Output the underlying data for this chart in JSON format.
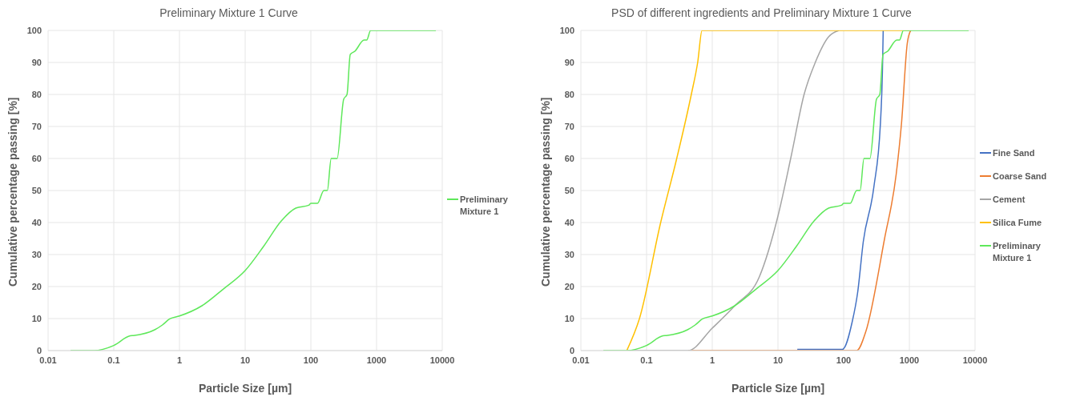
{
  "chart_data": [
    {
      "type": "line",
      "title": "Preliminary Mixture 1 Curve",
      "xlabel": "Particle Size [µm]",
      "ylabel": "Cumulative percentage passing [%]",
      "log": "x",
      "grid": true,
      "legend": "right",
      "marker": "none",
      "line_style": "solid",
      "xlim": [
        0.01,
        10000
      ],
      "xticks": [
        0.01,
        0.1,
        1,
        10,
        100,
        1000,
        10000
      ],
      "ylim": [
        0,
        100
      ],
      "yticks": [
        0,
        10,
        20,
        30,
        40,
        50,
        60,
        70,
        80,
        90,
        100
      ],
      "series": [
        {
          "name": "Preliminary Mixture 1",
          "color": "#5ee85a",
          "x": [
            0.022,
            0.05,
            0.1,
            0.178,
            0.2,
            0.42,
            0.55,
            0.71,
            1,
            2.2,
            4.7,
            10,
            19,
            35.5,
            59,
            93,
            100,
            126,
            158,
            178,
            204,
            251,
            316,
            355,
            398,
            468,
            646,
            708,
            813,
            8000
          ],
          "values": [
            0,
            0,
            1.6,
            4.6,
            4.7,
            6.5,
            8,
            9.9,
            10.8,
            14,
            19.3,
            25,
            32.5,
            40.5,
            44.5,
            45.4,
            46,
            46,
            50,
            50,
            60,
            60,
            78.5,
            80,
            92.5,
            93.5,
            97,
            97,
            100,
            100
          ]
        }
      ]
    },
    {
      "type": "line",
      "title": "PSD of different ingredients and Preliminary Mixture 1 Curve",
      "xlabel": "Particle Size [µm]",
      "ylabel": "Cumulative percentage passing [%]",
      "log": "x",
      "grid": true,
      "legend": "right",
      "marker": "none",
      "line_style": "solid",
      "xlim": [
        0.01,
        10000
      ],
      "xticks": [
        0.01,
        0.1,
        1,
        10,
        100,
        1000,
        10000
      ],
      "ylim": [
        0,
        100
      ],
      "yticks": [
        0,
        10,
        20,
        30,
        40,
        50,
        60,
        70,
        80,
        90,
        100
      ],
      "series": [
        {
          "name": "Fine Sand",
          "color": "#4472c4",
          "x": [
            19.7,
            96,
            135,
            163,
            199,
            288,
            363,
            390,
            400
          ],
          "values": [
            0.4,
            0.4,
            9,
            18,
            34,
            51,
            71,
            88,
            100
          ]
        },
        {
          "name": "Coarse Sand",
          "color": "#ed7d31",
          "x": [
            0.43,
            158,
            218,
            420,
            630,
            760,
            930,
            1050
          ],
          "values": [
            0,
            0,
            6,
            35,
            55,
            71,
            96,
            100
          ]
        },
        {
          "name": "Cement",
          "color": "#a5a5a5",
          "x": [
            0.05,
            0.43,
            1,
            2.2,
            5.2,
            10,
            16,
            25,
            37,
            59,
            85
          ],
          "values": [
            0,
            0,
            7,
            14,
            23,
            42,
            61,
            80,
            90,
            98,
            100
          ]
        },
        {
          "name": "Silica Fume",
          "color": "#ffc000",
          "x": [
            0.05,
            0.078,
            0.164,
            0.288,
            0.48,
            0.6,
            0.7,
            1000
          ],
          "values": [
            0,
            10,
            40,
            60,
            80,
            90,
            100,
            100
          ]
        },
        {
          "name": "Preliminary Mixture 1",
          "color": "#5ee85a",
          "x": [
            0.022,
            0.05,
            0.1,
            0.178,
            0.2,
            0.42,
            0.55,
            0.71,
            1,
            2.2,
            4.7,
            10,
            19,
            35.5,
            59,
            93,
            100,
            126,
            158,
            178,
            204,
            251,
            316,
            355,
            398,
            468,
            646,
            708,
            813,
            8000
          ],
          "values": [
            0,
            0,
            1.6,
            4.6,
            4.7,
            6.5,
            8,
            9.9,
            10.8,
            14,
            19.3,
            25,
            32.5,
            40.5,
            44.5,
            45.4,
            46,
            46,
            50,
            50,
            60,
            60,
            78.5,
            80,
            92.5,
            93.5,
            97,
            97,
            100,
            100
          ]
        }
      ]
    }
  ]
}
